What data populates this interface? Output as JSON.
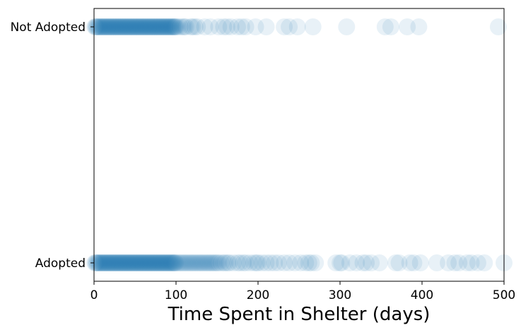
{
  "chart_data": {
    "type": "scatter",
    "title": "",
    "xlabel": "Time Spent in Shelter (days)",
    "ylabel": "",
    "xlim": [
      0,
      500
    ],
    "x_ticks": [
      0,
      100,
      200,
      300,
      400,
      500
    ],
    "x_tick_labels": [
      "0",
      "100",
      "200",
      "300",
      "400",
      "500"
    ],
    "categories": [
      "Adopted",
      "Not Adopted"
    ],
    "grid": false,
    "marker_color": "#1f77b4",
    "marker_alpha": 0.1,
    "series": [
      {
        "category": "Not Adopted",
        "x": [
          1,
          2,
          3,
          4,
          5,
          6,
          7,
          8,
          9,
          10,
          11,
          12,
          13,
          14,
          15,
          16,
          17,
          18,
          19,
          20,
          21,
          22,
          23,
          24,
          25,
          26,
          27,
          28,
          29,
          30,
          31,
          32,
          33,
          34,
          35,
          36,
          37,
          38,
          39,
          40,
          41,
          42,
          43,
          44,
          45,
          46,
          47,
          48,
          49,
          50,
          51,
          52,
          53,
          54,
          55,
          56,
          57,
          58,
          59,
          60,
          61,
          62,
          63,
          64,
          65,
          66,
          67,
          68,
          69,
          70,
          71,
          72,
          73,
          74,
          75,
          76,
          77,
          78,
          79,
          80,
          81,
          82,
          83,
          84,
          85,
          86,
          87,
          88,
          89,
          90,
          91,
          92,
          93,
          94,
          95,
          96,
          97,
          98,
          99,
          100,
          102,
          105,
          108,
          110,
          112,
          118,
          120,
          123,
          126,
          135,
          142,
          152,
          158,
          162,
          167,
          175,
          180,
          185,
          197,
          210,
          232,
          238,
          248,
          267,
          308,
          355,
          362,
          382,
          396,
          493
        ]
      },
      {
        "category": "Adopted",
        "x": [
          1,
          2,
          3,
          4,
          5,
          6,
          7,
          8,
          9,
          10,
          11,
          12,
          13,
          14,
          15,
          16,
          17,
          18,
          19,
          20,
          21,
          22,
          23,
          24,
          25,
          26,
          27,
          28,
          29,
          30,
          31,
          32,
          33,
          34,
          35,
          36,
          37,
          38,
          39,
          40,
          41,
          42,
          43,
          44,
          45,
          46,
          47,
          48,
          49,
          50,
          51,
          52,
          53,
          54,
          55,
          56,
          57,
          58,
          59,
          60,
          61,
          62,
          63,
          64,
          65,
          66,
          67,
          68,
          69,
          70,
          71,
          72,
          73,
          74,
          75,
          76,
          77,
          78,
          79,
          80,
          81,
          82,
          83,
          84,
          85,
          86,
          87,
          88,
          89,
          90,
          91,
          92,
          93,
          94,
          95,
          96,
          97,
          98,
          99,
          100,
          102,
          104,
          106,
          108,
          110,
          112,
          114,
          116,
          118,
          120,
          122,
          124,
          126,
          128,
          130,
          132,
          134,
          136,
          138,
          140,
          142,
          144,
          146,
          148,
          150,
          152,
          155,
          158,
          160,
          163,
          165,
          170,
          175,
          178,
          182,
          185,
          190,
          195,
          198,
          200,
          205,
          210,
          215,
          220,
          225,
          232,
          238,
          245,
          252,
          258,
          262,
          265,
          270,
          295,
          300,
          302,
          312,
          320,
          328,
          332,
          338,
          348,
          368,
          372,
          385,
          390,
          398,
          418,
          432,
          440,
          445,
          455,
          460,
          468,
          476,
          500
        ]
      }
    ]
  }
}
